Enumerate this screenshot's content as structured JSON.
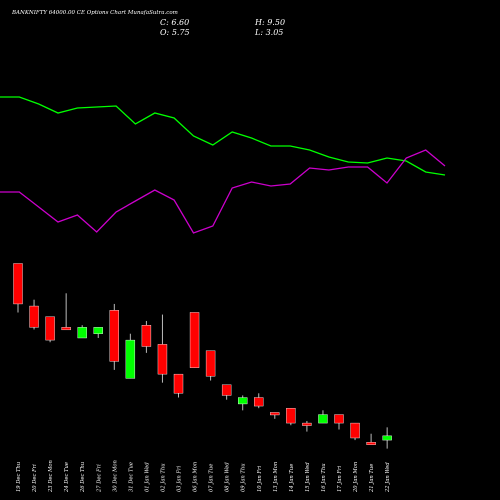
{
  "chart_data": {
    "type": "candlestick",
    "title": "BANKNIFTY 64000.00  CE Options  Chart  MunafaSutra.com",
    "ohlc": {
      "close_label": "C:",
      "close": "6.60",
      "open_label": "O:",
      "open": "5.75",
      "high_label": "H:",
      "high": "9.50",
      "low_label": "L:",
      "low": "3.05"
    },
    "up_color": "#00ff00",
    "down_color": "#ff0000",
    "line1_color": "#00ff00",
    "line2_color": "#cc00cc",
    "candles": [
      {
        "date": "19 Dec Thu",
        "open": 60.0,
        "high": 60.0,
        "low": 48.5,
        "close": 50.5
      },
      {
        "date": "20 Dec Fri",
        "open": 50.0,
        "high": 51.5,
        "low": 44.5,
        "close": 45.0
      },
      {
        "date": "23 Dec Mon",
        "open": 47.5,
        "high": 47.5,
        "low": 41.5,
        "close": 42.0
      },
      {
        "date": "24 Dec Tue",
        "open": 45.0,
        "high": 53.0,
        "low": 44.5,
        "close": 44.5
      },
      {
        "date": "26 Dec Thu",
        "open": 42.5,
        "high": 45.5,
        "low": 42.5,
        "close": 45.0
      },
      {
        "date": "27 Dec Fri",
        "open": 43.5,
        "high": 45.0,
        "low": 42.5,
        "close": 45.0
      },
      {
        "date": "30 Dec Mon",
        "open": 49.0,
        "high": 50.5,
        "low": 35.0,
        "close": 37.0
      },
      {
        "date": "31 Dec Tue",
        "open": 33.0,
        "high": 43.5,
        "low": 33.0,
        "close": 42.0
      },
      {
        "date": "01 Jan Wed",
        "open": 45.5,
        "high": 46.5,
        "low": 39.0,
        "close": 40.5
      },
      {
        "date": "02 Jan Thu",
        "open": 41.0,
        "high": 48.0,
        "low": 32.0,
        "close": 34.0
      },
      {
        "date": "03 Jan Fri",
        "open": 34.0,
        "high": 34.0,
        "low": 28.5,
        "close": 29.5
      },
      {
        "date": "06 Jan Mon",
        "open": 48.5,
        "high": 48.5,
        "low": 35.5,
        "close": 35.5
      },
      {
        "date": "07 Jan Tue",
        "open": 39.5,
        "high": 39.5,
        "low": 32.5,
        "close": 33.5
      },
      {
        "date": "08 Jan Wed",
        "open": 31.5,
        "high": 31.5,
        "low": 28.0,
        "close": 29.0
      },
      {
        "date": "09 Jan Thu",
        "open": 27.0,
        "high": 29.0,
        "low": 25.5,
        "close": 28.5
      },
      {
        "date": "10 Jan Fri",
        "open": 28.5,
        "high": 29.5,
        "low": 26.0,
        "close": 26.5
      },
      {
        "date": "13 Jan Mon",
        "open": 25.0,
        "high": 25.0,
        "low": 23.5,
        "close": 24.5
      },
      {
        "date": "14 Jan Tue",
        "open": 26.0,
        "high": 26.0,
        "low": 22.0,
        "close": 22.5
      },
      {
        "date": "15 Jan Wed",
        "open": 22.5,
        "high": 23.0,
        "low": 20.5,
        "close": 22.0
      },
      {
        "date": "16 Jan Thu",
        "open": 22.5,
        "high": 25.5,
        "low": 22.5,
        "close": 24.5
      },
      {
        "date": "17 Jan Fri",
        "open": 24.5,
        "high": 24.5,
        "low": 21.0,
        "close": 22.5
      },
      {
        "date": "20 Jan Mon",
        "open": 22.5,
        "high": 22.5,
        "low": 18.5,
        "close": 19.0
      },
      {
        "date": "21 Jan Tue",
        "open": 18.0,
        "high": 20.0,
        "low": 17.5,
        "close": 17.5
      },
      {
        "date": "22 Jan Wed",
        "open": 18.5,
        "high": 21.5,
        "low": 16.5,
        "close": 19.5
      }
    ],
    "line1": [
      97,
      97,
      104,
      113,
      108,
      107,
      106,
      124,
      113,
      118,
      136,
      145,
      132,
      138,
      146,
      146,
      150,
      157,
      162,
      163,
      158,
      161,
      172,
      175
    ],
    "line2": [
      192,
      192,
      207,
      222,
      215,
      232,
      212,
      201,
      190,
      200,
      233,
      226,
      188,
      182,
      186,
      184,
      168,
      170,
      167,
      167,
      183,
      158,
      150,
      166
    ]
  }
}
